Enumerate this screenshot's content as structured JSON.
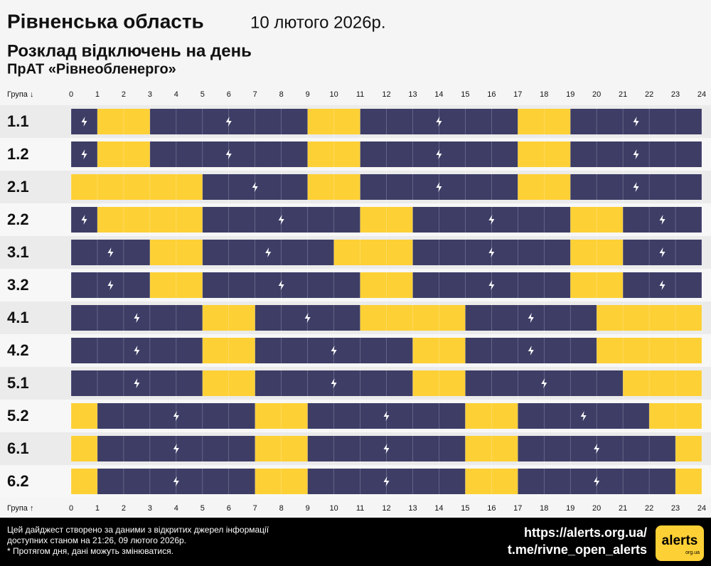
{
  "chart_data": {
    "type": "schedule",
    "title": "Рівненська область",
    "date": "10 лютого 2026р.",
    "subtitle": "Розклад відключень на день",
    "company": "ПрАТ «Рівнеобленерго»",
    "top_axis_label": "Група ↓",
    "bottom_axis_label": "Група ↑",
    "xlim": [
      0,
      24
    ],
    "xticks": [
      0,
      1,
      2,
      3,
      4,
      5,
      6,
      7,
      8,
      9,
      10,
      11,
      12,
      13,
      14,
      15,
      16,
      17,
      18,
      19,
      20,
      21,
      22,
      23,
      24
    ],
    "off_color": "#3d3d66",
    "on_color": "#fdd035",
    "groups": [
      {
        "name": "1.1",
        "off": [
          [
            0,
            1
          ],
          [
            3,
            9
          ],
          [
            11,
            17
          ],
          [
            19,
            24
          ]
        ]
      },
      {
        "name": "1.2",
        "off": [
          [
            0,
            1
          ],
          [
            3,
            9
          ],
          [
            11,
            17
          ],
          [
            19,
            24
          ]
        ]
      },
      {
        "name": "2.1",
        "off": [
          [
            5,
            9
          ],
          [
            11,
            17
          ],
          [
            19,
            24
          ]
        ]
      },
      {
        "name": "2.2",
        "off": [
          [
            0,
            1
          ],
          [
            5,
            11
          ],
          [
            13,
            19
          ],
          [
            21,
            24
          ]
        ]
      },
      {
        "name": "3.1",
        "off": [
          [
            0,
            3
          ],
          [
            5,
            10
          ],
          [
            13,
            19
          ],
          [
            21,
            24
          ]
        ]
      },
      {
        "name": "3.2",
        "off": [
          [
            0,
            3
          ],
          [
            5,
            11
          ],
          [
            13,
            19
          ],
          [
            21,
            24
          ]
        ]
      },
      {
        "name": "4.1",
        "off": [
          [
            0,
            5
          ],
          [
            7,
            11
          ],
          [
            15,
            20
          ]
        ]
      },
      {
        "name": "4.2",
        "off": [
          [
            0,
            5
          ],
          [
            7,
            13
          ],
          [
            15,
            20
          ]
        ]
      },
      {
        "name": "5.1",
        "off": [
          [
            0,
            5
          ],
          [
            7,
            13
          ],
          [
            15,
            21
          ]
        ]
      },
      {
        "name": "5.2",
        "off": [
          [
            1,
            7
          ],
          [
            9,
            15
          ],
          [
            17,
            22
          ]
        ]
      },
      {
        "name": "6.1",
        "off": [
          [
            1,
            7
          ],
          [
            9,
            15
          ],
          [
            17,
            23
          ]
        ]
      },
      {
        "name": "6.2",
        "off": [
          [
            1,
            7
          ],
          [
            9,
            15
          ],
          [
            17,
            23
          ]
        ]
      }
    ],
    "footer": [
      "Цей дайджест створено за даними з відкритих джерел інформації",
      "доступних станом на 21:26, 09 лютого 2026р.",
      "* Протягом дня, дані можуть змінюватися."
    ],
    "links": [
      "https://alerts.org.ua/",
      "t.me/rivne_open_alerts"
    ],
    "logo": {
      "name": "alerts",
      "domain": "org.ua"
    }
  }
}
